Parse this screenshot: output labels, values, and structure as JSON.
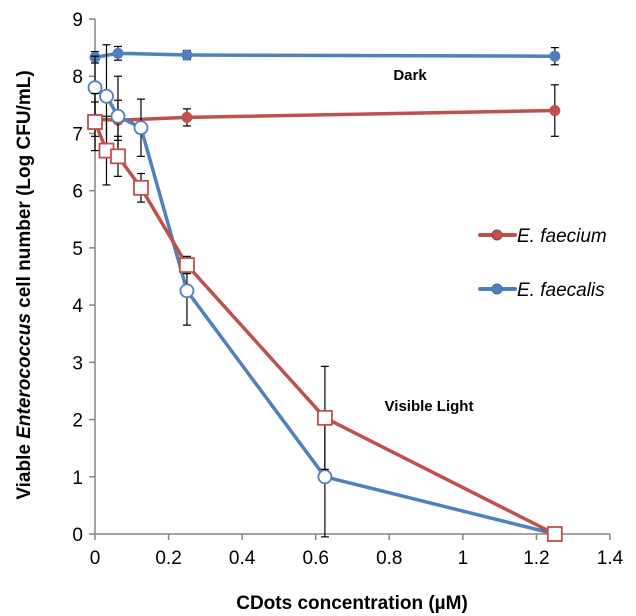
{
  "chart_data": {
    "type": "line",
    "title": "",
    "xlabel": "CDots  concentration (µM)",
    "ylabel_prefix": "Viable ",
    "ylabel_italic": "Enterococcus",
    "ylabel_suffix": " cell number (Log CFU/mL)",
    "xlim": [
      0,
      1.4
    ],
    "ylim": [
      0,
      9
    ],
    "xticks": [
      0,
      0.2,
      0.4,
      0.6,
      0.8,
      1,
      1.2,
      1.4
    ],
    "xtick_labels": [
      "0",
      "0.2",
      "0.4",
      "0.6",
      "0.8",
      "1",
      "1.2",
      "1.4"
    ],
    "yticks": [
      0,
      1,
      2,
      3,
      4,
      5,
      6,
      7,
      8,
      9
    ],
    "ytick_labels": [
      "0",
      "1",
      "2",
      "3",
      "4",
      "5",
      "6",
      "7",
      "8",
      "9"
    ],
    "grid": false,
    "legend_position": "right",
    "legend": [
      {
        "label": "E. faecium",
        "color": "#c0504d"
      },
      {
        "label": "E. faecalis",
        "color": "#4f81bd"
      }
    ],
    "annotations": [
      {
        "text": "Dark",
        "x": 0.67,
        "y": 7.9
      },
      {
        "text": "Visible Light",
        "x": 0.6,
        "y": 2.35
      }
    ],
    "series": [
      {
        "condition": "Dark",
        "species": "E. faecalis",
        "color": "#4f81bd",
        "marker": "filled-circle",
        "x": [
          0,
          0.0625,
          0.25,
          1.25
        ],
        "y": [
          8.33,
          8.4,
          8.37,
          8.35
        ],
        "err": [
          0.1,
          0.12,
          0.08,
          0.15
        ]
      },
      {
        "condition": "Dark",
        "species": "E. faecium",
        "color": "#c0504d",
        "marker": "filled-circle",
        "x": [
          0,
          0.0625,
          0.25,
          1.25
        ],
        "y": [
          7.25,
          7.23,
          7.28,
          7.4
        ],
        "err": [
          0.3,
          0.35,
          0.15,
          0.45
        ]
      },
      {
        "condition": "Visible Light",
        "species": "E. faecalis",
        "color": "#4f81bd",
        "marker": "open-circle",
        "x": [
          0,
          0.03125,
          0.0625,
          0.125,
          0.25,
          0.625,
          1.25
        ],
        "y": [
          7.8,
          7.65,
          7.3,
          7.1,
          4.25,
          1.0,
          0.0
        ],
        "err": [
          0.55,
          0.9,
          0.7,
          0.5,
          0.6,
          1.05,
          0.0
        ]
      },
      {
        "condition": "Visible Light",
        "species": "E. faecium",
        "color": "#c0504d",
        "marker": "open-square",
        "x": [
          0,
          0.03125,
          0.0625,
          0.125,
          0.25,
          0.625,
          1.25
        ],
        "y": [
          7.2,
          6.7,
          6.6,
          6.05,
          4.7,
          2.03,
          0.0
        ],
        "err": [
          0.5,
          0.6,
          0.35,
          0.25,
          0.15,
          0.9,
          0.0
        ]
      }
    ]
  }
}
